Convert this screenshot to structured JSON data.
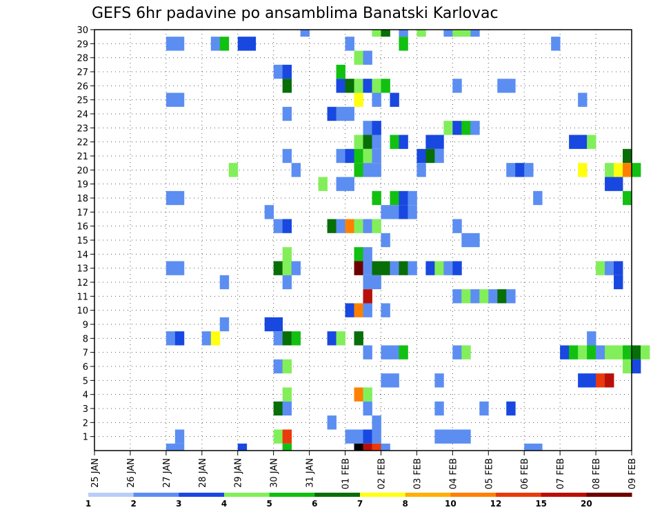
{
  "chart_data": {
    "type": "heatmap",
    "title": "GEFS 6hr padavine po ansamblima Banatski Karlovac",
    "x_axis": {
      "ticks": [
        "25 JAN",
        "26 JAN",
        "27 JAN",
        "28 JAN",
        "29 JAN",
        "30 JAN",
        "31 JAN",
        "01 FEB",
        "02 FEB",
        "03 FEB",
        "04 FEB",
        "05 FEB",
        "06 FEB",
        "07 FEB",
        "08 FEB",
        "09 FEB"
      ],
      "steps_per_day": 4
    },
    "y_axis": {
      "ticks": [
        1,
        2,
        3,
        4,
        5,
        6,
        7,
        8,
        9,
        10,
        11,
        12,
        13,
        14,
        15,
        16,
        17,
        18,
        19,
        20,
        21,
        22,
        23,
        24,
        25,
        26,
        27,
        28,
        29,
        30
      ],
      "range": [
        0,
        30
      ]
    },
    "grid": "dotted",
    "legend": {
      "position": "bottom",
      "labels": [
        "1",
        "2",
        "3",
        "4",
        "5",
        "6",
        "7",
        "8",
        "10",
        "12",
        "15",
        "20"
      ],
      "colors": [
        "#b8cdf8",
        "#5c8ef2",
        "#1848e0",
        "#82ef5a",
        "#12c012",
        "#086e08",
        "#ffff10",
        "#ffb000",
        "#ff8000",
        "#e83a0a",
        "#b81008",
        "#6e0000"
      ]
    },
    "cells": [
      [
        30,
        23,
        1
      ],
      [
        30,
        31,
        3
      ],
      [
        30,
        32,
        5
      ],
      [
        30,
        34,
        1
      ],
      [
        30,
        36,
        3
      ],
      [
        30,
        39,
        1
      ],
      [
        30,
        40,
        3
      ],
      [
        30,
        41,
        3
      ],
      [
        30,
        42,
        1
      ],
      [
        29,
        8,
        1
      ],
      [
        29,
        9,
        1
      ],
      [
        29,
        13,
        1
      ],
      [
        29,
        14,
        4
      ],
      [
        29,
        16,
        2
      ],
      [
        29,
        17,
        2
      ],
      [
        29,
        28,
        1
      ],
      [
        29,
        34,
        4
      ],
      [
        29,
        51,
        1
      ],
      [
        28,
        29,
        3
      ],
      [
        28,
        30,
        1
      ],
      [
        27,
        20,
        1
      ],
      [
        27,
        21,
        2
      ],
      [
        27,
        27,
        4
      ],
      [
        26,
        21,
        5
      ],
      [
        26,
        27,
        2
      ],
      [
        26,
        28,
        5
      ],
      [
        26,
        29,
        3
      ],
      [
        26,
        30,
        2
      ],
      [
        26,
        31,
        3
      ],
      [
        26,
        32,
        4
      ],
      [
        26,
        40,
        1
      ],
      [
        26,
        45,
        1
      ],
      [
        26,
        46,
        1
      ],
      [
        25,
        8,
        1
      ],
      [
        25,
        9,
        1
      ],
      [
        25,
        29,
        6
      ],
      [
        25,
        31,
        1
      ],
      [
        25,
        33,
        2
      ],
      [
        25,
        54,
        1
      ],
      [
        24,
        21,
        1
      ],
      [
        24,
        26,
        2
      ],
      [
        24,
        27,
        1
      ],
      [
        24,
        28,
        1
      ],
      [
        23,
        30,
        1
      ],
      [
        23,
        31,
        2
      ],
      [
        23,
        39,
        3
      ],
      [
        23,
        40,
        2
      ],
      [
        23,
        41,
        4
      ],
      [
        23,
        42,
        1
      ],
      [
        22,
        29,
        3
      ],
      [
        22,
        30,
        5
      ],
      [
        22,
        31,
        1
      ],
      [
        22,
        33,
        4
      ],
      [
        22,
        34,
        2
      ],
      [
        22,
        37,
        2
      ],
      [
        22,
        38,
        2
      ],
      [
        22,
        53,
        2
      ],
      [
        22,
        54,
        2
      ],
      [
        22,
        55,
        3
      ],
      [
        21,
        21,
        1
      ],
      [
        21,
        27,
        1
      ],
      [
        21,
        28,
        2
      ],
      [
        21,
        29,
        4
      ],
      [
        21,
        30,
        3
      ],
      [
        21,
        31,
        1
      ],
      [
        21,
        36,
        2
      ],
      [
        21,
        37,
        5
      ],
      [
        21,
        38,
        1
      ],
      [
        21,
        59,
        5
      ],
      [
        20,
        15,
        3
      ],
      [
        20,
        22,
        1
      ],
      [
        20,
        29,
        4
      ],
      [
        20,
        30,
        1
      ],
      [
        20,
        31,
        1
      ],
      [
        20,
        36,
        1
      ],
      [
        20,
        46,
        1
      ],
      [
        20,
        47,
        2
      ],
      [
        20,
        48,
        1
      ],
      [
        20,
        54,
        6
      ],
      [
        20,
        57,
        3
      ],
      [
        20,
        58,
        6
      ],
      [
        20,
        59,
        8
      ],
      [
        20,
        60,
        4
      ],
      [
        19,
        25,
        3
      ],
      [
        19,
        27,
        1
      ],
      [
        19,
        28,
        1
      ],
      [
        19,
        57,
        2
      ],
      [
        19,
        58,
        2
      ],
      [
        18,
        8,
        1
      ],
      [
        18,
        9,
        1
      ],
      [
        18,
        31,
        4
      ],
      [
        18,
        33,
        4
      ],
      [
        18,
        34,
        2
      ],
      [
        18,
        35,
        1
      ],
      [
        18,
        49,
        1
      ],
      [
        18,
        59,
        4
      ],
      [
        17,
        19,
        1
      ],
      [
        17,
        32,
        1
      ],
      [
        17,
        33,
        1
      ],
      [
        17,
        34,
        2
      ],
      [
        17,
        35,
        1
      ],
      [
        16,
        20,
        1
      ],
      [
        16,
        21,
        2
      ],
      [
        16,
        26,
        5
      ],
      [
        16,
        27,
        1
      ],
      [
        16,
        28,
        8
      ],
      [
        16,
        29,
        3
      ],
      [
        16,
        30,
        1
      ],
      [
        16,
        31,
        3
      ],
      [
        16,
        40,
        1
      ],
      [
        15,
        32,
        1
      ],
      [
        15,
        41,
        1
      ],
      [
        15,
        42,
        1
      ],
      [
        14,
        21,
        3
      ],
      [
        14,
        29,
        4
      ],
      [
        14,
        30,
        1
      ],
      [
        13,
        8,
        1
      ],
      [
        13,
        9,
        1
      ],
      [
        13,
        20,
        5
      ],
      [
        13,
        21,
        3
      ],
      [
        13,
        22,
        1
      ],
      [
        13,
        29,
        11
      ],
      [
        13,
        30,
        1
      ],
      [
        13,
        31,
        5
      ],
      [
        13,
        32,
        5
      ],
      [
        13,
        33,
        1
      ],
      [
        13,
        34,
        5
      ],
      [
        13,
        35,
        1
      ],
      [
        13,
        37,
        2
      ],
      [
        13,
        38,
        3
      ],
      [
        13,
        39,
        1
      ],
      [
        13,
        40,
        2
      ],
      [
        13,
        56,
        3
      ],
      [
        13,
        57,
        1
      ],
      [
        13,
        58,
        2
      ],
      [
        12,
        14,
        1
      ],
      [
        12,
        21,
        1
      ],
      [
        12,
        30,
        1
      ],
      [
        12,
        31,
        1
      ],
      [
        12,
        58,
        2
      ],
      [
        11,
        30,
        10
      ],
      [
        11,
        40,
        1
      ],
      [
        11,
        41,
        3
      ],
      [
        11,
        42,
        1
      ],
      [
        11,
        43,
        3
      ],
      [
        11,
        44,
        1
      ],
      [
        11,
        45,
        5
      ],
      [
        11,
        46,
        1
      ],
      [
        10,
        28,
        2
      ],
      [
        10,
        29,
        8
      ],
      [
        10,
        30,
        1
      ],
      [
        10,
        32,
        1
      ],
      [
        9,
        14,
        1
      ],
      [
        9,
        19,
        2
      ],
      [
        9,
        20,
        2
      ],
      [
        8,
        8,
        1
      ],
      [
        8,
        9,
        2
      ],
      [
        8,
        12,
        1
      ],
      [
        8,
        13,
        6
      ],
      [
        8,
        20,
        1
      ],
      [
        8,
        21,
        5
      ],
      [
        8,
        22,
        4
      ],
      [
        8,
        26,
        2
      ],
      [
        8,
        27,
        3
      ],
      [
        8,
        29,
        5
      ],
      [
        8,
        55,
        1
      ],
      [
        7,
        30,
        1
      ],
      [
        7,
        32,
        1
      ],
      [
        7,
        33,
        1
      ],
      [
        7,
        34,
        4
      ],
      [
        7,
        40,
        1
      ],
      [
        7,
        41,
        3
      ],
      [
        7,
        52,
        2
      ],
      [
        7,
        53,
        4
      ],
      [
        7,
        54,
        3
      ],
      [
        7,
        55,
        4
      ],
      [
        7,
        56,
        1
      ],
      [
        7,
        57,
        3
      ],
      [
        7,
        58,
        3
      ],
      [
        7,
        59,
        4
      ],
      [
        7,
        60,
        5
      ],
      [
        7,
        61,
        3
      ],
      [
        6,
        20,
        1
      ],
      [
        6,
        21,
        3
      ],
      [
        6,
        59,
        3
      ],
      [
        6,
        60,
        2
      ],
      [
        5,
        32,
        1
      ],
      [
        5,
        33,
        1
      ],
      [
        5,
        38,
        1
      ],
      [
        5,
        54,
        2
      ],
      [
        5,
        55,
        2
      ],
      [
        5,
        56,
        9
      ],
      [
        5,
        57,
        10
      ],
      [
        4,
        21,
        3
      ],
      [
        4,
        29,
        8
      ],
      [
        4,
        30,
        3
      ],
      [
        3,
        20,
        5
      ],
      [
        3,
        21,
        1
      ],
      [
        3,
        30,
        1
      ],
      [
        3,
        38,
        1
      ],
      [
        3,
        43,
        1
      ],
      [
        3,
        46,
        2
      ],
      [
        2,
        26,
        1
      ],
      [
        2,
        31,
        1
      ],
      [
        1,
        9,
        1
      ],
      [
        1,
        20,
        3
      ],
      [
        1,
        21,
        9
      ],
      [
        1,
        28,
        1
      ],
      [
        1,
        29,
        1
      ],
      [
        1,
        30,
        2
      ],
      [
        1,
        31,
        1
      ],
      [
        1,
        38,
        1
      ],
      [
        1,
        39,
        1
      ],
      [
        1,
        40,
        1
      ],
      [
        1,
        41,
        1
      ],
      [
        0,
        8,
        1
      ],
      [
        0,
        9,
        1
      ],
      [
        0,
        16,
        2
      ],
      [
        0,
        21,
        4
      ],
      [
        0,
        29,
        13
      ],
      [
        0,
        30,
        10
      ],
      [
        0,
        31,
        9
      ],
      [
        0,
        32,
        1
      ],
      [
        0,
        48,
        1
      ],
      [
        0,
        49,
        1
      ]
    ]
  }
}
